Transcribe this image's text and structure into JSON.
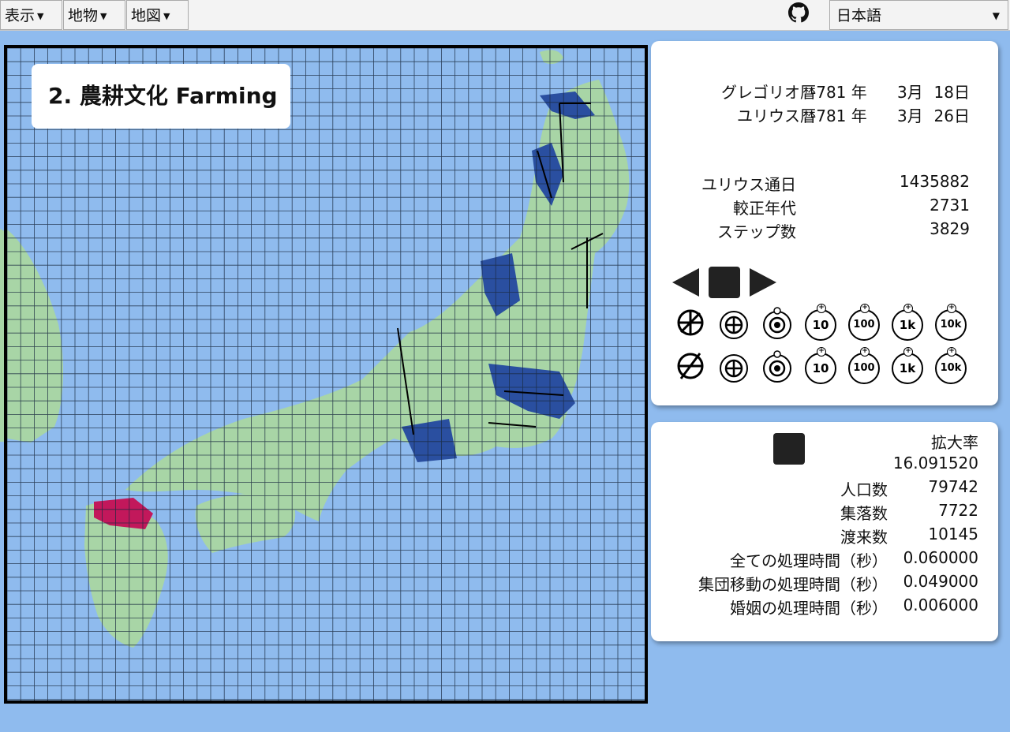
{
  "menu": {
    "view": "表示",
    "features": "地物",
    "map": "地図",
    "language": "日本語"
  },
  "map_title": "2. 農耕文化 Farming",
  "calendar": {
    "gregorian_label": "グレゴリオ暦",
    "gregorian_year": "-781 年",
    "gregorian_month": "3月",
    "gregorian_day": "18日",
    "julian_label": "ユリウス暦",
    "julian_year": "-781 年",
    "julian_month": "3月",
    "julian_day": "26日"
  },
  "stats_top": [
    {
      "label": "ユリウス通日",
      "value": "1435882"
    },
    {
      "label": "較正年代",
      "value": "2731"
    },
    {
      "label": "ステップ数",
      "value": "3829"
    }
  ],
  "speed_buttons": [
    "10",
    "100",
    "1k",
    "10k"
  ],
  "stats_bottom": {
    "zoom_label": "拡大率",
    "zoom_value": "16.091520",
    "rows": [
      {
        "label": "人口数",
        "value": "79742"
      },
      {
        "label": "集落数",
        "value": "7722"
      },
      {
        "label": "渡来数",
        "value": "10145"
      },
      {
        "label": "全ての処理時間（秒）",
        "value": "0.060000"
      },
      {
        "label": "集団移動の処理時間（秒）",
        "value": "0.049000"
      },
      {
        "label": "婚姻の処理時間（秒）",
        "value": "0.006000"
      }
    ]
  },
  "colors": {
    "sea": "#8fbbee",
    "land": "#a8d5a6",
    "settlement_east": "#2a4fa0",
    "settlement_west": "#c2185b",
    "grid": "#1a2a40"
  }
}
